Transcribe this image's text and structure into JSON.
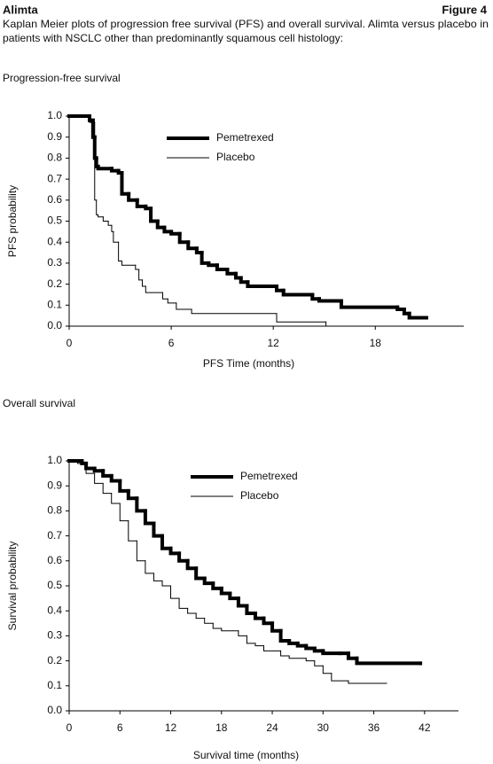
{
  "header": {
    "left": "Alimta",
    "right": "Figure 4",
    "caption": [
      "Kaplan Meier plots of progression free survival (PFS) and overall survival. Alimta versus placebo in",
      "patients with NSCLC other than predominantly squamous cell histology:"
    ]
  },
  "chart_data": [
    {
      "type": "step",
      "title": "Progression-free survival",
      "x_label": "PFS Time (months)",
      "y_label": "PFS probability",
      "xlim": [
        0,
        23.2
      ],
      "xticks": [
        0,
        6,
        12,
        18
      ],
      "ylim": [
        0,
        1
      ],
      "yticks": [
        {
          "value": 1,
          "label": "1.0"
        },
        0.9,
        0.8,
        0.7,
        0.6,
        0.5,
        0.4,
        0.3,
        0.2,
        0.1,
        {
          "value": 0,
          "label": "0.0"
        }
      ],
      "legend": "top",
      "series": [
        {
          "name": "Pemetrexed",
          "color": "#000000",
          "x": [
            0,
            1.2,
            1.4,
            1.5,
            1.6,
            1.7,
            2.5,
            2.9,
            3.1,
            3.5,
            4.0,
            4.5,
            4.8,
            5.2,
            5.6,
            6.0,
            6.5,
            7.0,
            7.5,
            7.8,
            8.2,
            8.7,
            9.3,
            9.8,
            10.1,
            10.5,
            12.2,
            12.6,
            14.3,
            14.7,
            16.0,
            19.3,
            19.7,
            20.0,
            21.0
          ],
          "values": [
            1.0,
            0.98,
            0.9,
            0.8,
            0.76,
            0.75,
            0.74,
            0.73,
            0.63,
            0.6,
            0.57,
            0.56,
            0.5,
            0.47,
            0.45,
            0.44,
            0.4,
            0.37,
            0.35,
            0.3,
            0.29,
            0.27,
            0.25,
            0.23,
            0.21,
            0.19,
            0.17,
            0.15,
            0.13,
            0.12,
            0.09,
            0.08,
            0.06,
            0.04,
            0.04
          ]
        },
        {
          "name": "Placebo",
          "color": "#000000",
          "x": [
            0,
            1.2,
            1.5,
            1.6,
            1.7,
            2.0,
            2.3,
            2.5,
            2.6,
            2.9,
            3.1,
            3.9,
            4.1,
            4.3,
            4.5,
            5.5,
            5.8,
            6.3,
            7.2,
            12.2,
            15.1
          ],
          "values": [
            1.0,
            0.97,
            0.6,
            0.53,
            0.52,
            0.5,
            0.48,
            0.45,
            0.4,
            0.31,
            0.29,
            0.27,
            0.22,
            0.19,
            0.16,
            0.13,
            0.11,
            0.08,
            0.06,
            0.02,
            0.0
          ]
        }
      ]
    },
    {
      "type": "step",
      "title": "Overall survival",
      "x_label": "Survival time (months)",
      "y_label": "Survival probability",
      "xlim": [
        0,
        46
      ],
      "xticks": [
        0,
        6,
        12,
        18,
        24,
        30,
        36,
        42
      ],
      "ylim": [
        0,
        1
      ],
      "yticks": [
        {
          "value": 1,
          "label": "1.0"
        },
        0.9,
        0.8,
        0.7,
        0.6,
        0.5,
        0.4,
        0.3,
        0.2,
        0.1,
        {
          "value": 0,
          "label": "0.0"
        }
      ],
      "legend": "top",
      "series": [
        {
          "name": "Pemetrexed",
          "color": "#000000",
          "x": [
            0,
            1.5,
            2,
            3,
            4,
            5,
            6,
            7,
            8,
            9,
            10,
            11,
            12,
            13,
            14,
            15,
            16,
            17,
            18,
            19,
            20,
            21,
            22,
            23,
            24,
            25,
            26,
            27,
            28,
            29,
            30,
            32,
            33,
            34,
            41.5
          ],
          "values": [
            1.0,
            0.99,
            0.97,
            0.96,
            0.94,
            0.92,
            0.88,
            0.85,
            0.8,
            0.75,
            0.7,
            0.65,
            0.63,
            0.6,
            0.57,
            0.53,
            0.51,
            0.49,
            0.47,
            0.45,
            0.42,
            0.39,
            0.37,
            0.35,
            0.32,
            0.28,
            0.27,
            0.26,
            0.25,
            0.24,
            0.23,
            0.23,
            0.21,
            0.19,
            0.19
          ]
        },
        {
          "name": "Placebo",
          "color": "#000000",
          "x": [
            0,
            1,
            2,
            3,
            4,
            5,
            6,
            7,
            8,
            9,
            10,
            11,
            12,
            13,
            14,
            15,
            16,
            17,
            18,
            20,
            21,
            22,
            23,
            25,
            26,
            28,
            29,
            30,
            31,
            33,
            37.5
          ],
          "values": [
            1.0,
            0.99,
            0.95,
            0.91,
            0.87,
            0.83,
            0.76,
            0.68,
            0.6,
            0.55,
            0.52,
            0.5,
            0.45,
            0.41,
            0.39,
            0.37,
            0.35,
            0.33,
            0.32,
            0.3,
            0.27,
            0.26,
            0.24,
            0.22,
            0.21,
            0.2,
            0.18,
            0.15,
            0.12,
            0.11,
            0.11
          ]
        }
      ]
    }
  ]
}
